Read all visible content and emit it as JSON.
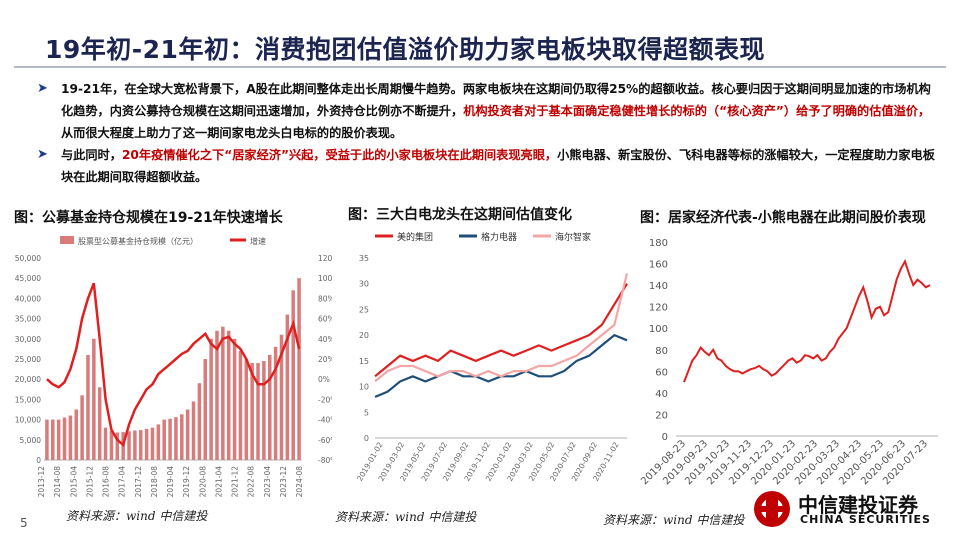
{
  "title": "19年初-21年初：消费抱团估值溢价助力家电板块取得超额表现",
  "bullets": [
    {
      "seg1": "19-21年，在全球大宽松背景下，A股在此期间整体走出长周期慢牛趋势。两家电板块在这期间仍取得25%的超额收益。核心要归因于这期间明显加速的市场机构化趋势，内资公募持仓规模在这期间迅速增加，外资持仓比例亦不断提升，",
      "seg2": "机构投资者对于基本面确定稳健性增长的标的（“核心资产”）给予了明确的估值溢价，",
      "seg3": "从而很大程度上助力了这一期间家电龙头白电标的的股价表现。"
    },
    {
      "seg1": "与此同时，",
      "seg2": "20年疫情催化之下“居家经济”兴起，受益于此的小家电板块在此期间表现亮眼，",
      "seg3": "小熊电器、新宝股份、飞科电器等标的涨幅较大，一定程度助力家电板块在此期间取得超额收益。"
    }
  ],
  "colors": {
    "title": "#1c2450",
    "red": "#c00000",
    "midea": "#e02020",
    "gree": "#1f4e79",
    "haier": "#f4a6a6",
    "bar": "#d77b7b"
  },
  "chart_titles": [
    "图：公募基金持仓规模在19-21年快速增长",
    "图：三大白电龙头在这期间估值变化",
    "图：居家经济代表-小熊电器在此期间股价表现"
  ],
  "sources": [
    "资料来源：wind  中信建投",
    "资料来源：wind  中信建投",
    "资料来源：wind  中信建投"
  ],
  "page_number": "5",
  "logo": {
    "cn": "中信建投证券",
    "en": "CHINA SECURITIES"
  },
  "chart_data": [
    {
      "type": "bar",
      "legend": [
        "股票型公募基金持仓规模（亿元）",
        "增速"
      ],
      "left_axis_ticks": [
        "50,000",
        "45,000",
        "40,000",
        "35,000",
        "30,000",
        "25,000",
        "20,000",
        "15,000",
        "10,000",
        "5,000",
        "0"
      ],
      "right_axis_ticks": [
        "120%",
        "100%",
        "80%",
        "60%",
        "40%",
        "20%",
        "0%",
        "-20%",
        "-40%",
        "-60%",
        "-80%"
      ],
      "x_ticks": [
        "2013-12",
        "2014-08",
        "2015-04",
        "2015-12",
        "2016-08",
        "2017-04",
        "2017-12",
        "2018-08",
        "2019-04",
        "2019-12",
        "2020-08",
        "2021-04",
        "2021-12",
        "2022-08",
        "2023-04",
        "2023-12",
        "2024-08"
      ],
      "ylim_left": [
        0,
        50000
      ],
      "ylim_right": [
        -80,
        120
      ],
      "bar_values": [
        10000,
        10000,
        10000,
        10500,
        11000,
        12500,
        16000,
        26000,
        30000,
        18000,
        8000,
        7200,
        6800,
        6900,
        7100,
        7300,
        7400,
        7700,
        8000,
        8800,
        10000,
        10200,
        10600,
        11300,
        12500,
        14500,
        19000,
        25000,
        30000,
        32000,
        33000,
        32000,
        30000,
        27000,
        25000,
        24000,
        24000,
        24500,
        26000,
        28000,
        31000,
        36000,
        42000,
        45000
      ],
      "growth_values": [
        0,
        -5,
        -8,
        -3,
        10,
        30,
        60,
        80,
        95,
        40,
        -20,
        -50,
        -60,
        -65,
        -45,
        -30,
        -20,
        -10,
        -5,
        5,
        10,
        15,
        20,
        25,
        28,
        35,
        40,
        45,
        35,
        30,
        40,
        42,
        35,
        30,
        20,
        5,
        -5,
        -5,
        0,
        10,
        25,
        40,
        55,
        30
      ]
    },
    {
      "type": "line",
      "series": [
        {
          "name": "美的集团",
          "values": [
            12,
            14,
            16,
            15,
            16,
            15,
            17,
            16,
            15,
            16,
            17,
            16,
            17,
            18,
            17,
            18,
            19,
            20,
            22,
            26,
            30
          ]
        },
        {
          "name": "格力电器",
          "values": [
            8,
            9,
            11,
            12,
            11,
            12,
            13,
            12,
            12,
            11,
            12,
            12,
            13,
            12,
            12,
            13,
            15,
            16,
            18,
            20,
            19
          ]
        },
        {
          "name": "海尔智家",
          "values": [
            11,
            13,
            14,
            14,
            13,
            12,
            13,
            13,
            12,
            13,
            12,
            13,
            13,
            14,
            14,
            15,
            16,
            18,
            20,
            22,
            32
          ]
        }
      ],
      "x_ticks": [
        "2019-01-02",
        "2019-03-02",
        "2019-05-02",
        "2019-07-02",
        "2019-09-02",
        "2019-11-02",
        "2020-01-02",
        "2020-03-02",
        "2020-05-02",
        "2020-07-02",
        "2020-09-02",
        "2020-11-02"
      ],
      "y_ticks": [
        "35",
        "30",
        "25",
        "20",
        "15",
        "10",
        "5",
        "0"
      ],
      "ylim": [
        0,
        35
      ]
    },
    {
      "type": "line",
      "series": [
        {
          "name": "",
          "values": [
            50,
            60,
            70,
            75,
            82,
            78,
            75,
            80,
            72,
            70,
            65,
            62,
            60,
            60,
            58,
            60,
            62,
            63,
            65,
            62,
            60,
            56,
            58,
            62,
            66,
            70,
            72,
            68,
            70,
            75,
            74,
            72,
            75,
            70,
            72,
            78,
            82,
            90,
            95,
            100,
            110,
            120,
            130,
            138,
            125,
            110,
            118,
            120,
            112,
            115,
            130,
            145,
            155,
            162,
            150,
            140,
            145,
            142,
            138,
            140
          ]
        }
      ],
      "x_ticks": [
        "2019-08-23",
        "2019-09-23",
        "2019-10-23",
        "2019-11-23",
        "2019-12-23",
        "2020-01-23",
        "2020-02-23",
        "2020-03-23",
        "2020-04-23",
        "2020-05-23",
        "2020-06-23",
        "2020-07-23"
      ],
      "y_ticks": [
        "180",
        "160",
        "140",
        "120",
        "100",
        "80",
        "60",
        "40",
        "20",
        "0"
      ],
      "ylim": [
        0,
        180
      ]
    }
  ]
}
